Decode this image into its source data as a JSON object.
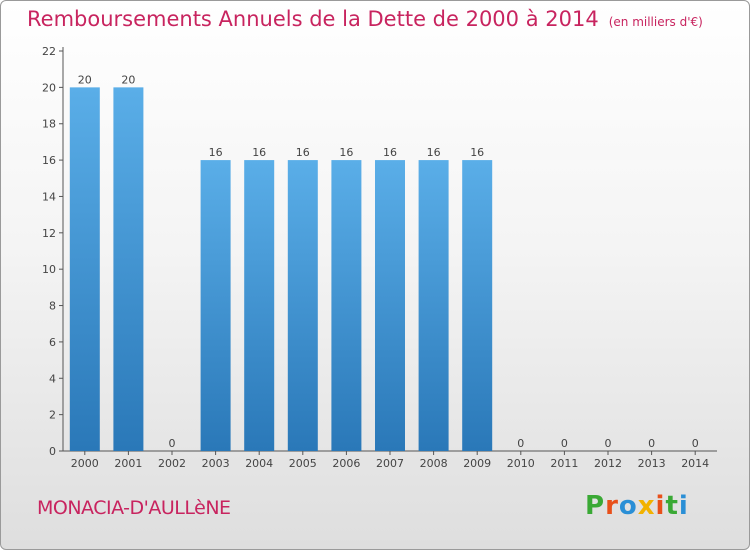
{
  "chart_data": {
    "type": "bar",
    "title": "Remboursements Annuels de la Dette de 2000 à 2014",
    "subtitle": "(en milliers d'€)",
    "categories": [
      "2000",
      "2001",
      "2002",
      "2003",
      "2004",
      "2005",
      "2006",
      "2007",
      "2008",
      "2009",
      "2010",
      "2011",
      "2012",
      "2013",
      "2014"
    ],
    "values": [
      20,
      20,
      0,
      16,
      16,
      16,
      16,
      16,
      16,
      16,
      0,
      0,
      0,
      0,
      0
    ],
    "data_labels": [
      "20",
      "20",
      "0",
      "16",
      "16",
      "16",
      "16",
      "16",
      "16",
      "16",
      "0",
      "0",
      "0",
      "0",
      "0"
    ],
    "ylim": [
      0,
      22
    ],
    "yticks": [
      0,
      2,
      4,
      6,
      8,
      10,
      12,
      14,
      16,
      18,
      20,
      22
    ],
    "xlabel": "",
    "ylabel": "",
    "grid": false,
    "bar_color_top": "#5aaee8",
    "bar_color_bottom": "#2a78b8",
    "title_color": "#c8245f"
  },
  "footer": {
    "commune": "MONACIA-D'AULLèNE",
    "logo_letters": [
      "P",
      "r",
      "o",
      "x",
      "i",
      "t",
      "i"
    ],
    "logo_colors": [
      "#3aa935",
      "#e8501a",
      "#2a8fd6",
      "#f2b200",
      "#e8501a",
      "#3aa935",
      "#2a8fd6"
    ]
  }
}
